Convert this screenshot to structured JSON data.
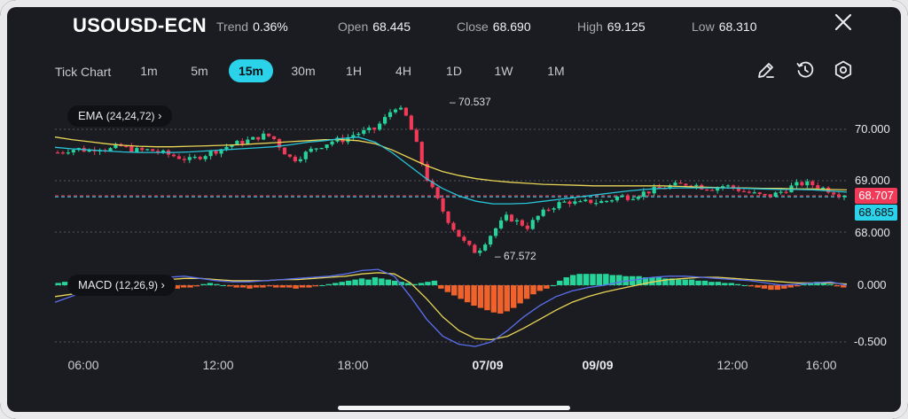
{
  "header": {
    "symbol": "USOUSD-ECN",
    "stats": [
      {
        "key": "Trend",
        "value": "0.36%"
      },
      {
        "key": "Open",
        "value": "68.445"
      },
      {
        "key": "Close",
        "value": "68.690"
      },
      {
        "key": "High",
        "value": "69.125"
      },
      {
        "key": "Low",
        "value": "68.310"
      }
    ]
  },
  "toolbar": {
    "tick_chart": "Tick Chart",
    "timeframes": [
      "1m",
      "5m",
      "15m",
      "30m",
      "1H",
      "4H",
      "1D",
      "1W",
      "1M"
    ],
    "active": "15m",
    "tools": [
      "draw-icon",
      "indicator-clock-icon",
      "settings-icon"
    ]
  },
  "indicators": {
    "ema_label": "EMA",
    "ema_params": "(24,24,72)",
    "macd_label": "MACD",
    "macd_params": "(12,26,9)"
  },
  "price_axis": [
    "70.000",
    "69.000",
    "68.000"
  ],
  "macd_axis": [
    "0.000",
    "-0.500"
  ],
  "time_axis": [
    {
      "label": "06:00",
      "bold": false
    },
    {
      "label": "12:00",
      "bold": false
    },
    {
      "label": "18:00",
      "bold": false
    },
    {
      "label": "07/09",
      "bold": true
    },
    {
      "label": "09/09",
      "bold": true
    },
    {
      "label": "12:00",
      "bold": false
    },
    {
      "label": "16:00",
      "bold": false
    }
  ],
  "annotations": {
    "high": "70.537",
    "low": "67.572"
  },
  "price_tags": {
    "last": "68.707",
    "bid": "68.685"
  },
  "colors": {
    "up": "#26d49a",
    "down": "#f03a57",
    "ema_fast": "#27c5d9",
    "ema_slow": "#e9d556",
    "macd_neg": "#f0622c",
    "accent": "#2bd3ea"
  },
  "chart_data": {
    "type": "candlestick",
    "price_ylim": [
      67.4,
      70.8
    ],
    "macd_ylim": [
      -0.62,
      0.22
    ],
    "close_path": [
      69.55,
      69.6,
      69.62,
      69.58,
      69.65,
      69.6,
      69.68,
      69.62,
      69.58,
      69.6,
      69.55,
      69.5,
      69.45,
      69.4,
      69.48,
      69.55,
      69.62,
      69.7,
      69.75,
      69.8,
      69.88,
      69.86,
      69.6,
      69.4,
      69.5,
      69.62,
      69.7,
      69.78,
      69.8,
      69.9,
      69.95,
      70.0,
      70.2,
      70.45,
      70.3,
      69.8,
      69.1,
      68.7,
      68.3,
      68.0,
      67.75,
      67.6,
      67.85,
      68.1,
      68.3,
      68.2,
      68.1,
      68.3,
      68.45,
      68.55,
      68.6,
      68.55,
      68.6,
      68.58,
      68.62,
      68.7,
      68.68,
      68.75,
      68.8,
      68.85,
      68.9,
      68.92,
      68.95,
      68.88,
      68.85,
      68.9,
      68.88,
      68.8,
      68.75,
      68.7,
      68.72,
      68.8,
      68.9,
      68.95,
      68.92,
      68.85,
      68.78,
      68.71
    ],
    "ema_fast_path": [
      69.65,
      69.62,
      69.6,
      69.58,
      69.56,
      69.55,
      69.55,
      69.55,
      69.56,
      69.58,
      69.6,
      69.62,
      69.64,
      69.66,
      69.7,
      69.75,
      69.78,
      69.82,
      69.85,
      69.75,
      69.55,
      69.3,
      69.05,
      68.85,
      68.7,
      68.6,
      68.55,
      68.55,
      68.56,
      68.6,
      68.64,
      68.68,
      68.72,
      68.76,
      68.8,
      68.83,
      68.85,
      68.86,
      68.86,
      68.86,
      68.86,
      68.85,
      68.84,
      68.83,
      68.83,
      68.82,
      68.8,
      68.78
    ],
    "ema_slow_path": [
      69.85,
      69.8,
      69.76,
      69.72,
      69.69,
      69.67,
      69.66,
      69.66,
      69.67,
      69.68,
      69.69,
      69.7,
      69.72,
      69.74,
      69.76,
      69.78,
      69.8,
      69.8,
      69.78,
      69.72,
      69.6,
      69.45,
      69.3,
      69.18,
      69.1,
      69.04,
      69.0,
      68.97,
      68.95,
      68.93,
      68.92,
      68.91,
      68.9,
      68.9,
      68.9,
      68.9,
      68.9,
      68.89,
      68.88,
      68.87,
      68.86,
      68.86,
      68.85,
      68.85,
      68.84,
      68.84,
      68.83,
      68.82
    ],
    "macd_hist": [
      0.02,
      0.03,
      0.02,
      0.02,
      0.03,
      0.02,
      0.02,
      0.03,
      0.04,
      0.04,
      0.03,
      0.02,
      0.0,
      -0.02,
      -0.02,
      -0.03,
      -0.02,
      -0.02,
      -0.03,
      -0.02,
      -0.02,
      -0.01,
      0.01,
      0.02,
      0.01,
      0.0,
      -0.01,
      -0.02,
      -0.02,
      -0.03,
      -0.02,
      -0.02,
      -0.01,
      -0.02,
      -0.02,
      -0.02,
      -0.03,
      -0.02,
      -0.02,
      -0.01,
      0.0,
      0.01,
      0.02,
      0.03,
      0.04,
      0.05,
      0.06,
      0.05,
      0.07,
      0.06,
      0.05,
      0.04,
      0.03,
      0.02,
      0.01,
      0.02,
      0.03,
      0.04,
      -0.03,
      -0.06,
      -0.09,
      -0.12,
      -0.15,
      -0.18,
      -0.2,
      -0.22,
      -0.24,
      -0.25,
      -0.23,
      -0.2,
      -0.16,
      -0.12,
      -0.08,
      -0.05,
      -0.03,
      0.0,
      0.04,
      0.07,
      0.09,
      0.1,
      0.1,
      0.1,
      0.1,
      0.1,
      0.09,
      0.09,
      0.08,
      0.08,
      0.08,
      0.07,
      0.07,
      0.07,
      0.06,
      0.06,
      0.05,
      0.05,
      0.05,
      0.04,
      0.04,
      0.03,
      0.03,
      0.02,
      0.02,
      0.01,
      0.0,
      -0.01,
      -0.02,
      -0.03,
      -0.04,
      -0.04,
      -0.03,
      -0.02,
      -0.01,
      0.01,
      0.02,
      0.03,
      0.02,
      0.01,
      -0.01,
      -0.02
    ],
    "macd_line_path": [
      -0.15,
      -0.1,
      -0.05,
      0.0,
      0.03,
      0.05,
      0.06,
      0.07,
      0.08,
      0.06,
      0.04,
      0.03,
      0.03,
      0.04,
      0.05,
      0.06,
      0.07,
      0.08,
      0.1,
      0.13,
      0.14,
      0.08,
      -0.1,
      -0.3,
      -0.45,
      -0.52,
      -0.54,
      -0.5,
      -0.4,
      -0.28,
      -0.18,
      -0.1,
      -0.05,
      -0.02,
      0.0,
      0.03,
      0.05,
      0.07,
      0.08,
      0.08,
      0.07,
      0.06,
      0.05,
      0.04,
      0.02,
      0.0,
      0.01,
      0.02,
      0.03,
      0.0
    ],
    "macd_signal_path": [
      -0.1,
      -0.08,
      -0.05,
      -0.02,
      0.0,
      0.02,
      0.04,
      0.05,
      0.06,
      0.06,
      0.05,
      0.04,
      0.04,
      0.04,
      0.05,
      0.05,
      0.06,
      0.07,
      0.08,
      0.1,
      0.11,
      0.1,
      0.02,
      -0.12,
      -0.28,
      -0.4,
      -0.47,
      -0.48,
      -0.45,
      -0.38,
      -0.3,
      -0.22,
      -0.15,
      -0.1,
      -0.06,
      -0.03,
      0.0,
      0.03,
      0.05,
      0.06,
      0.07,
      0.07,
      0.06,
      0.05,
      0.04,
      0.03,
      0.02,
      0.02,
      0.02,
      0.01
    ]
  }
}
